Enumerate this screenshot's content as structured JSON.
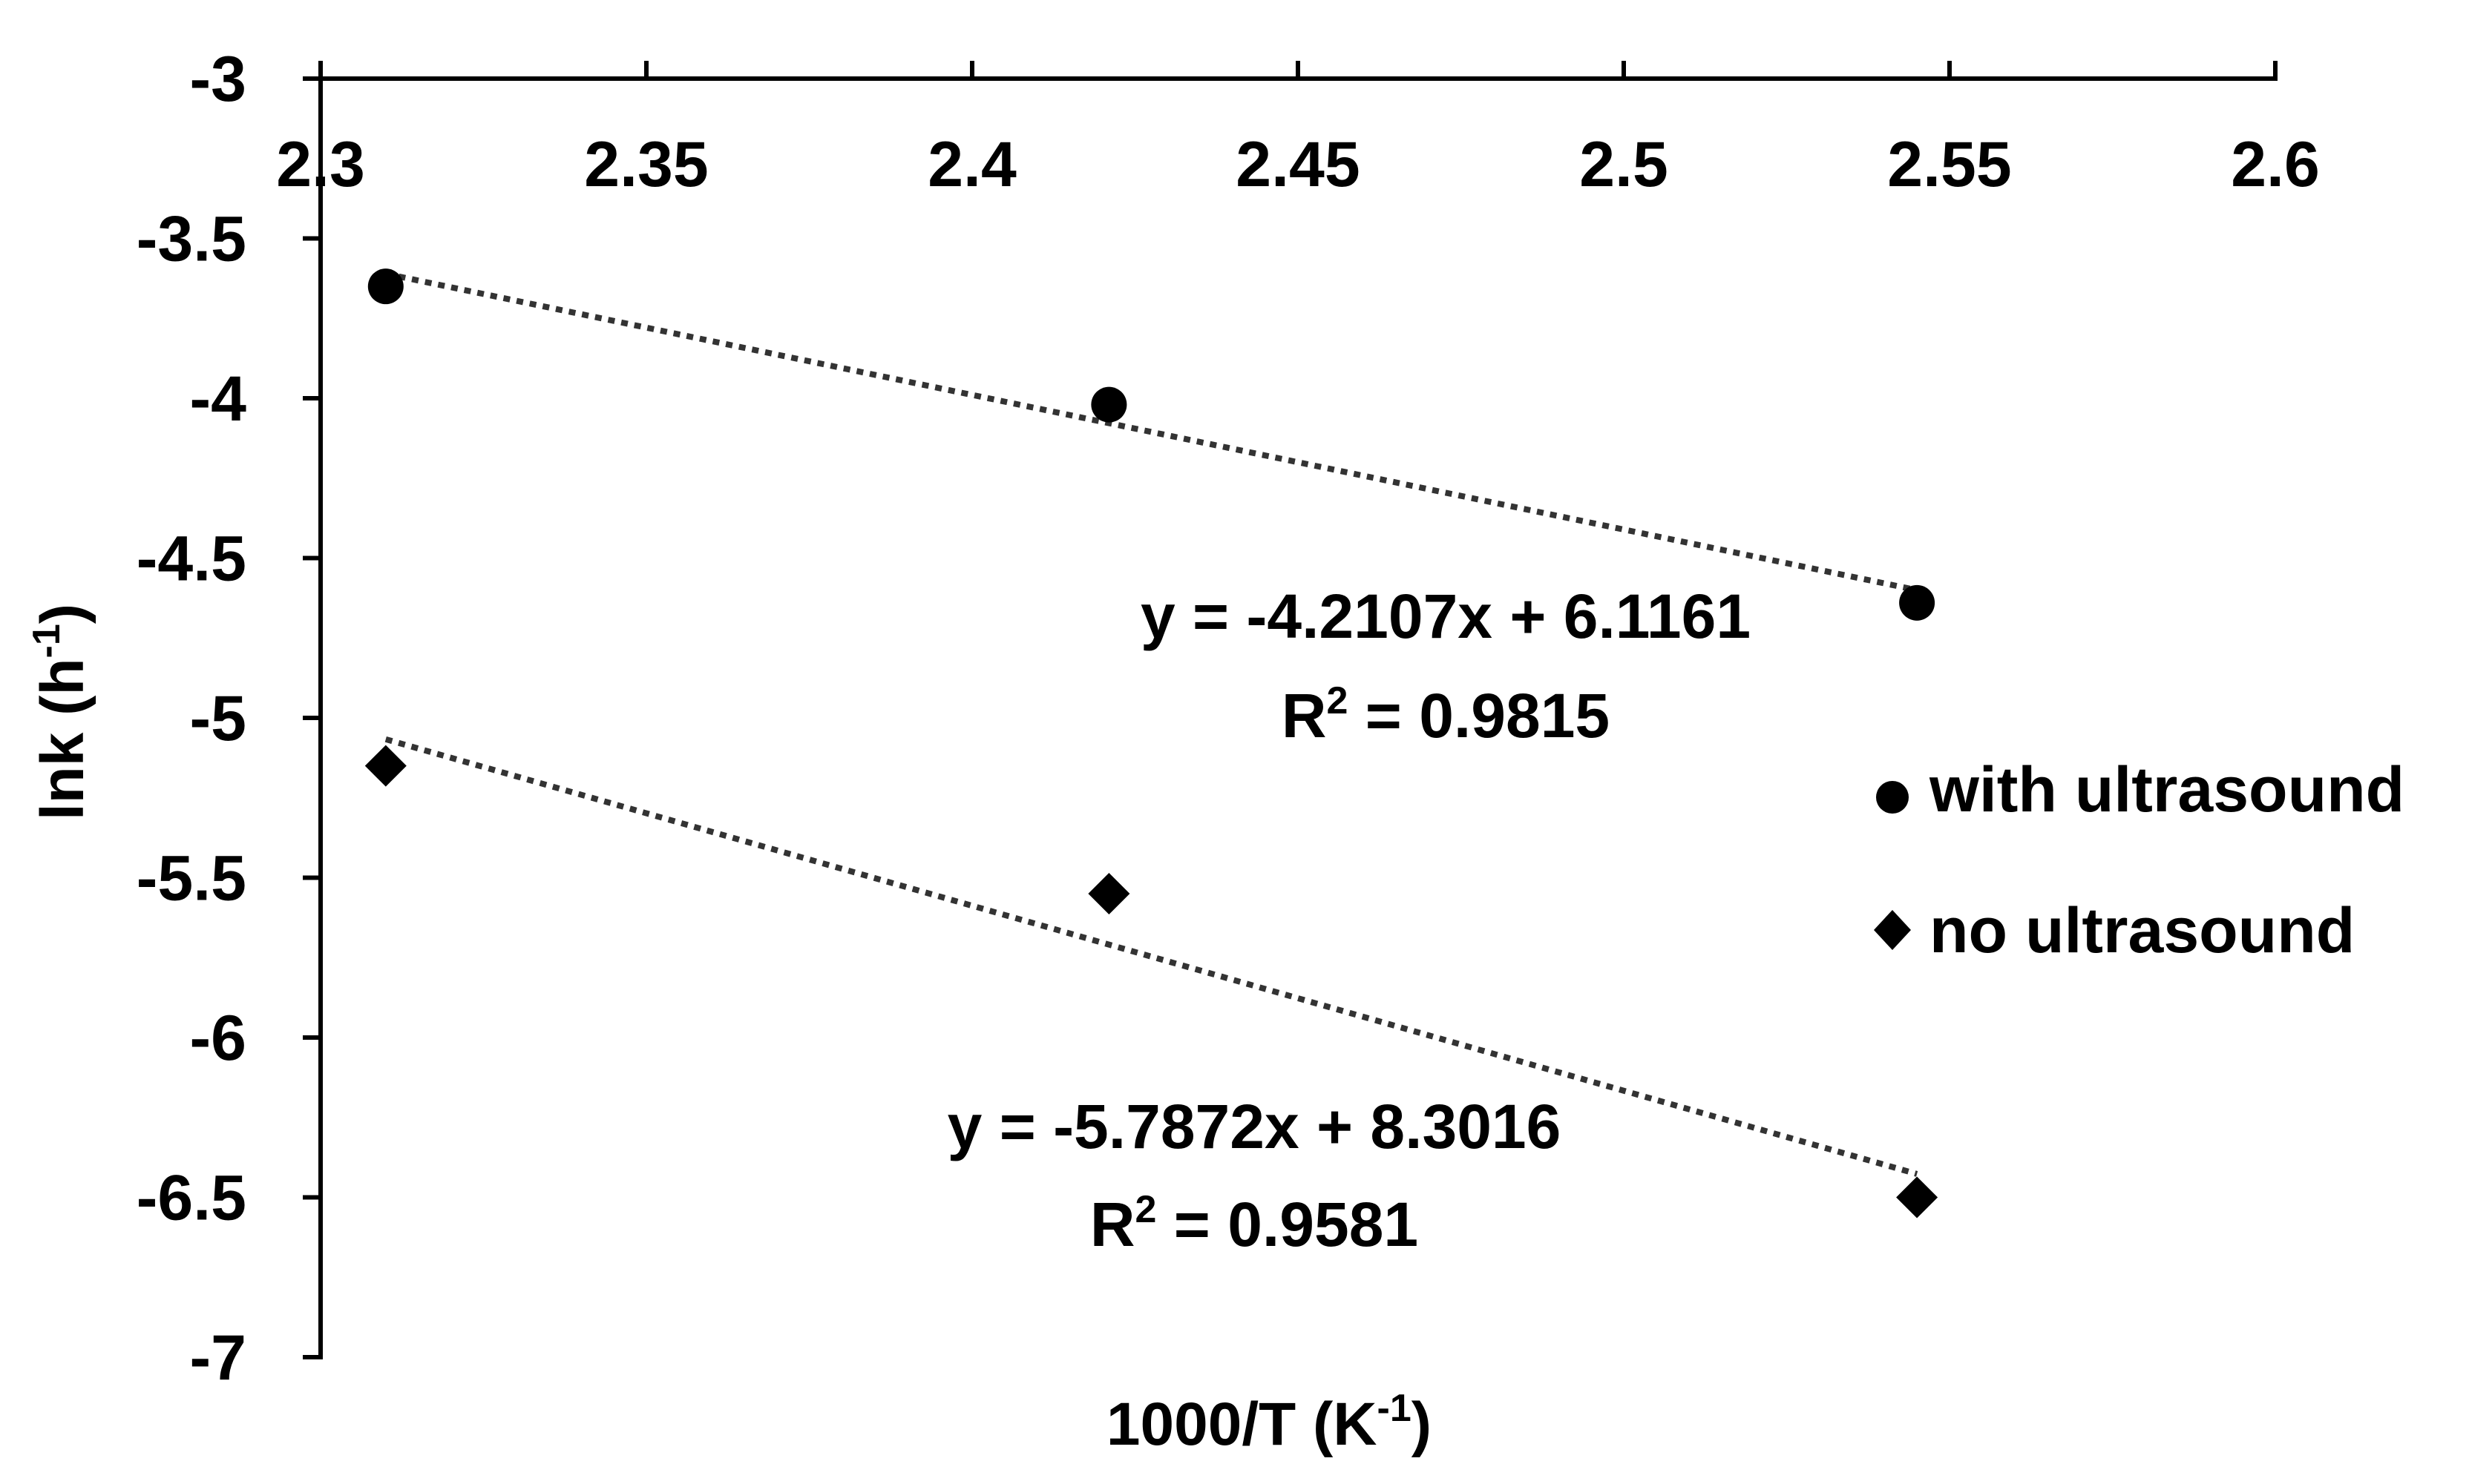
{
  "chart_data": {
    "type": "scatter",
    "title": "",
    "xlabel": {
      "base": "1000/T  (K",
      "sup": "-1",
      "tail": ")"
    },
    "ylabel": {
      "base": "lnk (h",
      "sup": "-1",
      "tail": ")"
    },
    "xlim": [
      2.3,
      2.6
    ],
    "ylim": [
      -7,
      -3
    ],
    "x_ticks": [
      "2.3",
      "2.35",
      "2.4",
      "2.45",
      "2.5",
      "2.55",
      "2.6"
    ],
    "y_ticks": [
      "-3",
      "-3.5",
      "-4",
      "-4.5",
      "-5",
      "-5.5",
      "-6",
      "-6.5",
      "-7"
    ],
    "x_axis_position": "top",
    "grid": false,
    "legend_position": "right",
    "series": [
      {
        "name": "with ultrasound",
        "marker": "circle",
        "color": "#000000",
        "x": [
          2.31,
          2.421,
          2.545
        ],
        "y": [
          -3.65,
          -4.02,
          -4.64
        ],
        "trendline": {
          "slope": -4.2107,
          "intercept": 6.1161,
          "style": "dotted"
        },
        "equation": "y = -4.2107x + 6.1161",
        "r2": {
          "base": "R",
          "sup": "2",
          "tail": " = 0.9815"
        }
      },
      {
        "name": "no ultrasound",
        "marker": "diamond",
        "color": "#000000",
        "x": [
          2.31,
          2.421,
          2.545
        ],
        "y": [
          -5.15,
          -5.55,
          -6.5
        ],
        "trendline": {
          "slope": -5.7872,
          "intercept": 8.3016,
          "style": "dotted"
        },
        "equation": "y = -5.7872x + 8.3016",
        "r2": {
          "base": "R",
          "sup": "2",
          "tail": " = 0.9581"
        }
      }
    ]
  }
}
